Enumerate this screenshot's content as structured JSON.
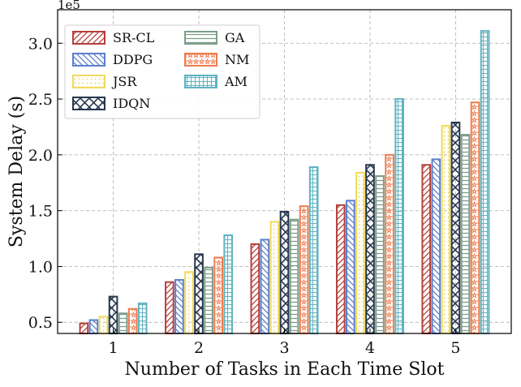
{
  "chart_data": {
    "type": "bar",
    "xlabel": "Number of Tasks in Each Time Slot",
    "ylabel": "System Delay (s)",
    "y_multiplier_label": "1e5",
    "categories": [
      "1",
      "2",
      "3",
      "4",
      "5"
    ],
    "ylim": [
      0.4,
      3.3
    ],
    "yticks": [
      0.5,
      1.0,
      1.5,
      2.0,
      2.5,
      3.0
    ],
    "ytick_labels": [
      "0.5",
      "1.0",
      "1.5",
      "2.0",
      "2.5",
      "3.0"
    ],
    "grid": true,
    "legend_position": "top-left",
    "series": [
      {
        "name": "SR-CL",
        "color": "#b5403a",
        "hatch": "diagonal",
        "values": [
          0.49,
          0.86,
          1.2,
          1.55,
          1.91
        ]
      },
      {
        "name": "DDPG",
        "color": "#5b7fce",
        "hatch": "back-diagonal",
        "values": [
          0.52,
          0.88,
          1.24,
          1.59,
          1.96
        ]
      },
      {
        "name": "JSR",
        "color": "#f2d95b",
        "hatch": "dots",
        "values": [
          0.55,
          0.95,
          1.4,
          1.84,
          2.26
        ]
      },
      {
        "name": "IDQN",
        "color": "#27384e",
        "hatch": "cross",
        "values": [
          0.73,
          1.11,
          1.49,
          1.91,
          2.29
        ]
      },
      {
        "name": "GA",
        "color": "#7d9e8a",
        "hatch": "horizontal",
        "values": [
          0.58,
          0.99,
          1.42,
          1.81,
          2.18
        ]
      },
      {
        "name": "NM",
        "color": "#ef7c4f",
        "hatch": "stars",
        "values": [
          0.62,
          1.08,
          1.54,
          2.0,
          2.47
        ]
      },
      {
        "name": "AM",
        "color": "#5fb3c1",
        "hatch": "grid",
        "values": [
          0.67,
          1.28,
          1.89,
          2.5,
          3.11
        ]
      }
    ]
  }
}
